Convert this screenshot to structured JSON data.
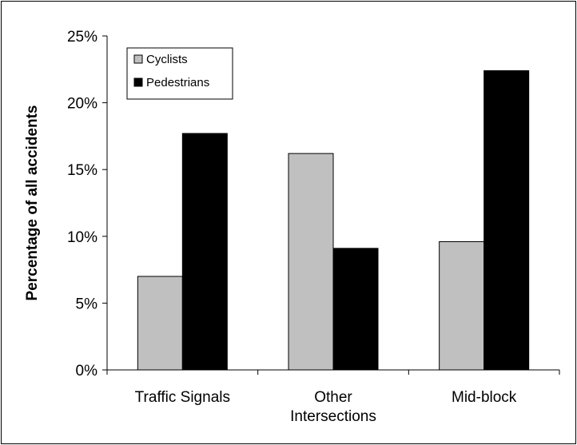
{
  "chart_data": {
    "type": "bar",
    "title": "",
    "xlabel": "",
    "ylabel": "Percentage of all accidents",
    "categories": [
      "Traffic Signals",
      "Other Intersections",
      "Mid-block"
    ],
    "category_lines": [
      [
        "Traffic Signals"
      ],
      [
        "Other",
        "Intersections"
      ],
      [
        "Mid-block"
      ]
    ],
    "series": [
      {
        "name": "Cyclists",
        "values": [
          7.0,
          16.2,
          9.6
        ],
        "color": "#c0c0c0"
      },
      {
        "name": "Pedestrians",
        "values": [
          17.7,
          9.1,
          22.4
        ],
        "color": "#000000"
      }
    ],
    "ylim": [
      0,
      25
    ],
    "yticks": [
      0,
      5,
      10,
      15,
      20,
      25
    ],
    "ytick_labels": [
      "0%",
      "5%",
      "10%",
      "15%",
      "20%",
      "25%"
    ],
    "grid": false,
    "legend_position": "top-left"
  }
}
